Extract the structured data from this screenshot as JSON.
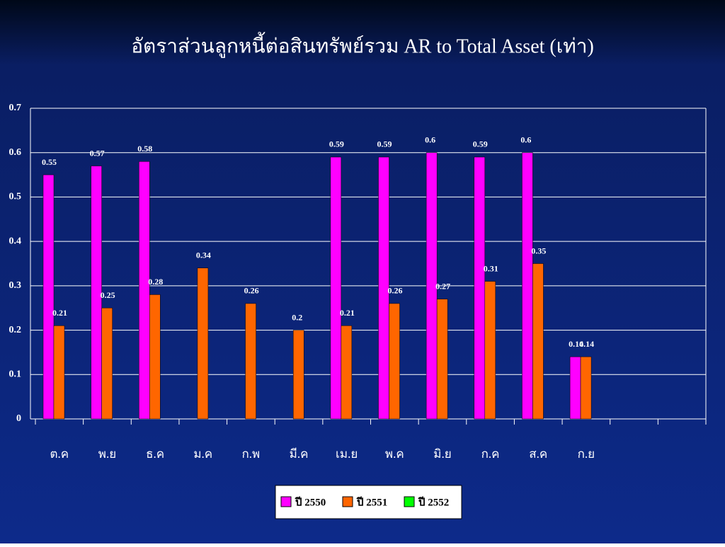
{
  "chart_data": {
    "type": "bar",
    "title": "อัตราส่วนลูกหนี้ต่อสินทรัพย์รวม AR to Total Asset (เท่า)",
    "categories": [
      "ต.ค",
      "พ.ย",
      "ธ.ค",
      "ม.ค",
      "ก.พ",
      "มี.ค",
      "เม.ย",
      "พ.ค",
      "มิ.ย",
      "ก.ค",
      "ส.ค",
      "ก.ย",
      null,
      null
    ],
    "series": [
      {
        "name": "ปี 2550",
        "color": "#ff00ff",
        "values": [
          0.55,
          0.57,
          0.58,
          null,
          null,
          null,
          0.59,
          0.59,
          0.6,
          0.59,
          0.6,
          0.14,
          null,
          null
        ]
      },
      {
        "name": "ปี 2551",
        "color": "#ff6600",
        "values": [
          0.21,
          0.25,
          0.28,
          0.34,
          0.26,
          0.2,
          0.21,
          0.26,
          0.27,
          0.31,
          0.35,
          0.14,
          null,
          null
        ]
      },
      {
        "name": "ปี 2552",
        "color": "#00ff00",
        "values": [
          null,
          null,
          null,
          null,
          null,
          null,
          null,
          null,
          null,
          null,
          null,
          null,
          null,
          null
        ]
      }
    ],
    "ylim": [
      0,
      0.7
    ],
    "yticks": [
      0,
      0.1,
      0.2,
      0.3,
      0.4,
      0.5,
      0.6,
      0.7
    ],
    "grid": true,
    "legend": "bottom"
  }
}
